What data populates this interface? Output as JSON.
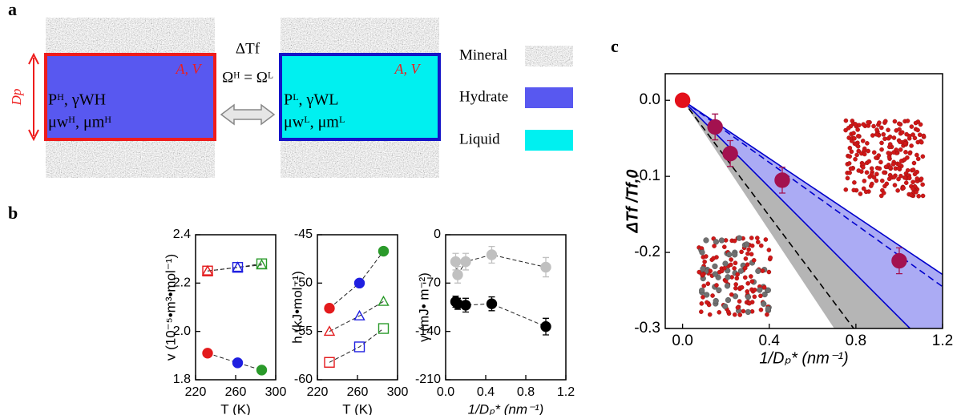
{
  "panel_a": {
    "label": "a",
    "delta_tf": "ΔTf",
    "omega": "Ωᴴ = Ωᴸ",
    "dp": "Dp",
    "av_left": "A, V",
    "av_right": "A, V",
    "hydrate_p": "Pᴴ, γWH",
    "hydrate_mu": "μwᴴ, μmᴴ",
    "liquid_p": "Pᴸ, γWL",
    "liquid_mu": "μwᴸ, μmᴸ",
    "legend": [
      "Mineral",
      "Hydrate",
      "Liquid"
    ]
  },
  "panel_b_label": "b",
  "panel_c_label": "c",
  "chart_data": [
    {
      "type": "scatter",
      "xlabel": "T (K)",
      "ylabel": "v (10⁻⁵•m³•mol⁻¹)",
      "x": [
        232,
        262,
        286
      ],
      "xlim": [
        220,
        300
      ],
      "xticks": [
        220,
        260,
        300
      ],
      "ylim": [
        1.8,
        2.4
      ],
      "yticks": [
        1.8,
        {
          "value": 2,
          "label": "2.0"
        },
        2.2,
        2.4
      ],
      "series": [
        {
          "marker": "triangle",
          "filled": false,
          "colors": [
            "#e31a1c",
            "#1f1fe0",
            "#2a9a2a"
          ],
          "values": [
            2.25,
            2.265,
            2.275
          ]
        },
        {
          "marker": "square",
          "filled": false,
          "colors": [
            "#e31a1c",
            "#1f1fe0",
            "#2a9a2a"
          ],
          "values": [
            2.25,
            2.265,
            2.28
          ]
        },
        {
          "marker": "circle",
          "filled": true,
          "colors": [
            "#e31a1c",
            "#1f1fe0",
            "#2a9a2a"
          ],
          "values": [
            1.91,
            1.87,
            1.84
          ]
        }
      ]
    },
    {
      "type": "scatter",
      "xlabel": "T (K)",
      "ylabel": "h (kJ•mol⁻¹)",
      "x": [
        232,
        262,
        286
      ],
      "xlim": [
        220,
        300
      ],
      "xticks": [
        220,
        260,
        300
      ],
      "ylim": [
        -60,
        -45
      ],
      "yticks": [
        -60,
        -55,
        -50,
        -45
      ],
      "series": [
        {
          "marker": "circle",
          "filled": true,
          "colors": [
            "#e31a1c",
            "#1f1fe0",
            "#2a9a2a"
          ],
          "values": [
            -52.6,
            -50,
            -46.7
          ]
        },
        {
          "marker": "triangle",
          "filled": false,
          "colors": [
            "#e31a1c",
            "#1f1fe0",
            "#2a9a2a"
          ],
          "values": [
            -55,
            -53.4,
            -51.9
          ]
        },
        {
          "marker": "square",
          "filled": false,
          "colors": [
            "#e31a1c",
            "#1f1fe0",
            "#2a9a2a"
          ],
          "values": [
            -58.2,
            -56.6,
            -54.7
          ]
        }
      ]
    },
    {
      "type": "scatter",
      "xlabel": "1/Dₚ* (nm⁻¹)",
      "ylabel": "γ (mJ• m⁻²)",
      "x": [
        0.1,
        0.12,
        0.2,
        0.46,
        1.0
      ],
      "xlim": [
        0,
        1.2
      ],
      "xticks": [
        {
          "value": 0,
          "label": "0.0"
        },
        0.4,
        0.8,
        1.2
      ],
      "ylim": [
        -210,
        0
      ],
      "yticks": [
        -210,
        -140,
        -70,
        0
      ],
      "series": [
        {
          "marker": "circle",
          "filled": true,
          "colors": [
            "#c0c0c0",
            "#c0c0c0",
            "#c0c0c0",
            "#c0c0c0",
            "#c0c0c0"
          ],
          "values": [
            -39,
            -58,
            -39,
            -29,
            -47
          ],
          "errors": [
            12,
            12,
            12,
            12,
            14
          ]
        },
        {
          "marker": "circle",
          "filled": true,
          "colors": [
            "#000000",
            "#000000",
            "#000000",
            "#000000",
            "#000000"
          ],
          "values": [
            -97,
            -100,
            -102,
            -100,
            -133
          ],
          "errors": [
            8,
            8,
            10,
            10,
            12
          ]
        }
      ]
    },
    {
      "type": "scatter",
      "xlabel": "1/Dₚ* (nm⁻¹)",
      "ylabel": "ΔTf /Tf,0",
      "x": [
        0,
        0.15,
        0.22,
        0.46,
        1.0
      ],
      "xlim": [
        -0.08,
        1.2
      ],
      "xticks": [
        {
          "value": 0,
          "label": "0.0"
        },
        0.4,
        0.8,
        1.2
      ],
      "ylim": [
        -0.3,
        0.035
      ],
      "yticks": [
        -0.3,
        -0.2,
        -0.1,
        {
          "value": 0,
          "label": "0.0"
        }
      ],
      "bands": [
        {
          "color": "#9c9cf2",
          "x": [
            0,
            1.2,
            1.2,
            1.05
          ],
          "y": [
            0,
            -0.229,
            -0.3,
            -0.3
          ]
        },
        {
          "color": "#a8a8a8",
          "x": [
            0,
            1.05,
            0.7
          ],
          "y": [
            0,
            -0.3,
            -0.3
          ]
        }
      ],
      "lines": [
        {
          "color": "#0000cc",
          "dashed": false,
          "x": [
            0,
            1.2
          ],
          "y": [
            0,
            -0.229
          ]
        },
        {
          "color": "#0000cc",
          "dashed": false,
          "x": [
            0,
            1.05
          ],
          "y": [
            0,
            -0.3
          ]
        },
        {
          "color": "#0000cc",
          "dashed": true,
          "x": [
            0,
            1.2
          ],
          "y": [
            0,
            -0.245
          ]
        },
        {
          "color": "#000000",
          "dashed": true,
          "x": [
            0,
            0.79
          ],
          "y": [
            0,
            -0.3
          ]
        }
      ],
      "series": [
        {
          "marker": "circle",
          "filled": true,
          "colors": [
            "#e3101a",
            "#a3114f",
            "#a3114f",
            "#a3114f",
            "#a3114f"
          ],
          "values": [
            0,
            -0.035,
            -0.07,
            -0.105,
            -0.211
          ],
          "errors": [
            null,
            0.017,
            0.017,
            0.017,
            0.017
          ]
        }
      ]
    }
  ]
}
